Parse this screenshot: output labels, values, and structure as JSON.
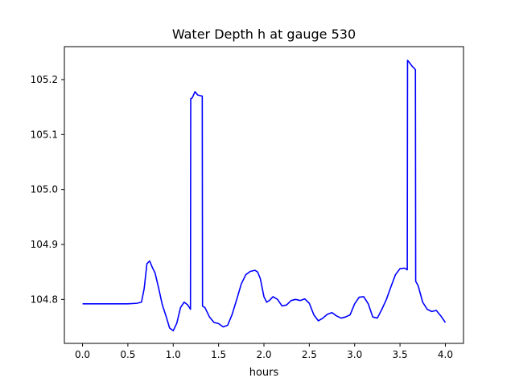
{
  "chart_data": {
    "type": "line",
    "title": "Water Depth h at gauge 530",
    "xlabel": "hours",
    "ylabel": "",
    "xlim": [
      -0.2,
      4.2
    ],
    "ylim": [
      104.72,
      105.26
    ],
    "x_ticks": [
      0.0,
      0.5,
      1.0,
      1.5,
      2.0,
      2.5,
      3.0,
      3.5,
      4.0
    ],
    "x_tick_labels": [
      "0.0",
      "0.5",
      "1.0",
      "1.5",
      "2.0",
      "2.5",
      "3.0",
      "3.5",
      "4.0"
    ],
    "y_ticks": [
      104.8,
      104.9,
      105.0,
      105.1,
      105.2
    ],
    "y_tick_labels": [
      "104.8",
      "104.9",
      "105.0",
      "105.1",
      "105.2"
    ],
    "grid": false,
    "series": [
      {
        "color": "#0000ff",
        "points": [
          [
            0.0,
            104.792
          ],
          [
            0.3,
            104.792
          ],
          [
            0.5,
            104.792
          ],
          [
            0.6,
            104.793
          ],
          [
            0.65,
            104.795
          ],
          [
            0.68,
            104.82
          ],
          [
            0.71,
            104.865
          ],
          [
            0.74,
            104.87
          ],
          [
            0.77,
            104.858
          ],
          [
            0.8,
            104.848
          ],
          [
            0.84,
            104.82
          ],
          [
            0.88,
            104.79
          ],
          [
            0.92,
            104.77
          ],
          [
            0.96,
            104.748
          ],
          [
            1.0,
            104.743
          ],
          [
            1.04,
            104.757
          ],
          [
            1.08,
            104.785
          ],
          [
            1.12,
            104.795
          ],
          [
            1.16,
            104.79
          ],
          [
            1.19,
            104.782
          ],
          [
            1.193,
            105.165
          ],
          [
            1.21,
            105.167
          ],
          [
            1.24,
            105.178
          ],
          [
            1.27,
            105.172
          ],
          [
            1.32,
            105.17
          ],
          [
            1.323,
            104.788
          ],
          [
            1.35,
            104.785
          ],
          [
            1.4,
            104.768
          ],
          [
            1.45,
            104.758
          ],
          [
            1.5,
            104.756
          ],
          [
            1.55,
            104.75
          ],
          [
            1.6,
            104.753
          ],
          [
            1.65,
            104.773
          ],
          [
            1.7,
            104.8
          ],
          [
            1.75,
            104.828
          ],
          [
            1.8,
            104.845
          ],
          [
            1.85,
            104.851
          ],
          [
            1.9,
            104.853
          ],
          [
            1.93,
            104.85
          ],
          [
            1.96,
            104.838
          ],
          [
            2.0,
            104.805
          ],
          [
            2.03,
            104.795
          ],
          [
            2.06,
            104.798
          ],
          [
            2.1,
            104.805
          ],
          [
            2.15,
            104.8
          ],
          [
            2.2,
            104.788
          ],
          [
            2.25,
            104.79
          ],
          [
            2.3,
            104.798
          ],
          [
            2.35,
            104.8
          ],
          [
            2.4,
            104.798
          ],
          [
            2.45,
            104.801
          ],
          [
            2.5,
            104.793
          ],
          [
            2.55,
            104.772
          ],
          [
            2.6,
            104.761
          ],
          [
            2.65,
            104.766
          ],
          [
            2.7,
            104.773
          ],
          [
            2.75,
            104.776
          ],
          [
            2.8,
            104.77
          ],
          [
            2.85,
            104.766
          ],
          [
            2.9,
            104.768
          ],
          [
            2.95,
            104.772
          ],
          [
            3.0,
            104.792
          ],
          [
            3.05,
            104.804
          ],
          [
            3.1,
            104.805
          ],
          [
            3.15,
            104.792
          ],
          [
            3.2,
            104.768
          ],
          [
            3.25,
            104.766
          ],
          [
            3.3,
            104.782
          ],
          [
            3.35,
            104.8
          ],
          [
            3.4,
            104.823
          ],
          [
            3.45,
            104.845
          ],
          [
            3.5,
            104.856
          ],
          [
            3.55,
            104.857
          ],
          [
            3.58,
            104.854
          ],
          [
            3.583,
            105.235
          ],
          [
            3.6,
            105.232
          ],
          [
            3.63,
            105.225
          ],
          [
            3.66,
            105.22
          ],
          [
            3.67,
            105.218
          ],
          [
            3.673,
            104.833
          ],
          [
            3.7,
            104.825
          ],
          [
            3.75,
            104.795
          ],
          [
            3.8,
            104.782
          ],
          [
            3.85,
            104.778
          ],
          [
            3.9,
            104.78
          ],
          [
            3.95,
            104.77
          ],
          [
            4.0,
            104.758
          ]
        ]
      }
    ]
  }
}
